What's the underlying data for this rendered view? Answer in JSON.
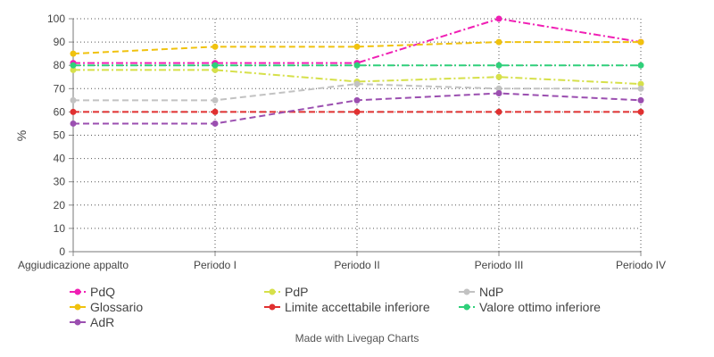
{
  "chart_data": {
    "type": "line",
    "ylabel": "%",
    "xlabel": "",
    "ylim": [
      0,
      100
    ],
    "yticks": [
      0,
      10,
      20,
      30,
      40,
      50,
      60,
      70,
      80,
      90,
      100
    ],
    "categories": [
      "Aggiudicazione appalto",
      "Periodo I",
      "Periodo II",
      "Periodo III",
      "Periodo IV"
    ],
    "grid": "dotted",
    "legend_position": "bottom",
    "series": [
      {
        "name": "PdQ",
        "color": "#f01fb4",
        "dash": "dashdot",
        "values": [
          81,
          81,
          81,
          100,
          90
        ]
      },
      {
        "name": "PdP",
        "color": "#d6e04a",
        "dash": "dashdot",
        "values": [
          78,
          78,
          73,
          75,
          72
        ]
      },
      {
        "name": "NdP",
        "color": "#c2c2c2",
        "dash": "dash",
        "values": [
          65,
          65,
          72,
          70,
          70
        ]
      },
      {
        "name": "Glossario",
        "color": "#f0c20e",
        "dash": "dash",
        "values": [
          85,
          88,
          88,
          90,
          90
        ]
      },
      {
        "name": "Limite accettabile inferiore",
        "color": "#e03030",
        "dash": "dash",
        "values": [
          60,
          60,
          60,
          60,
          60
        ]
      },
      {
        "name": "Valore ottimo inferiore",
        "color": "#2fd07a",
        "dash": "dashdot",
        "values": [
          80,
          80,
          80,
          80,
          80
        ]
      },
      {
        "name": "AdR",
        "color": "#9b4fb0",
        "dash": "dash",
        "values": [
          55,
          55,
          65,
          68,
          65
        ]
      }
    ]
  },
  "footer": {
    "text": "Made with Livegap Charts"
  }
}
